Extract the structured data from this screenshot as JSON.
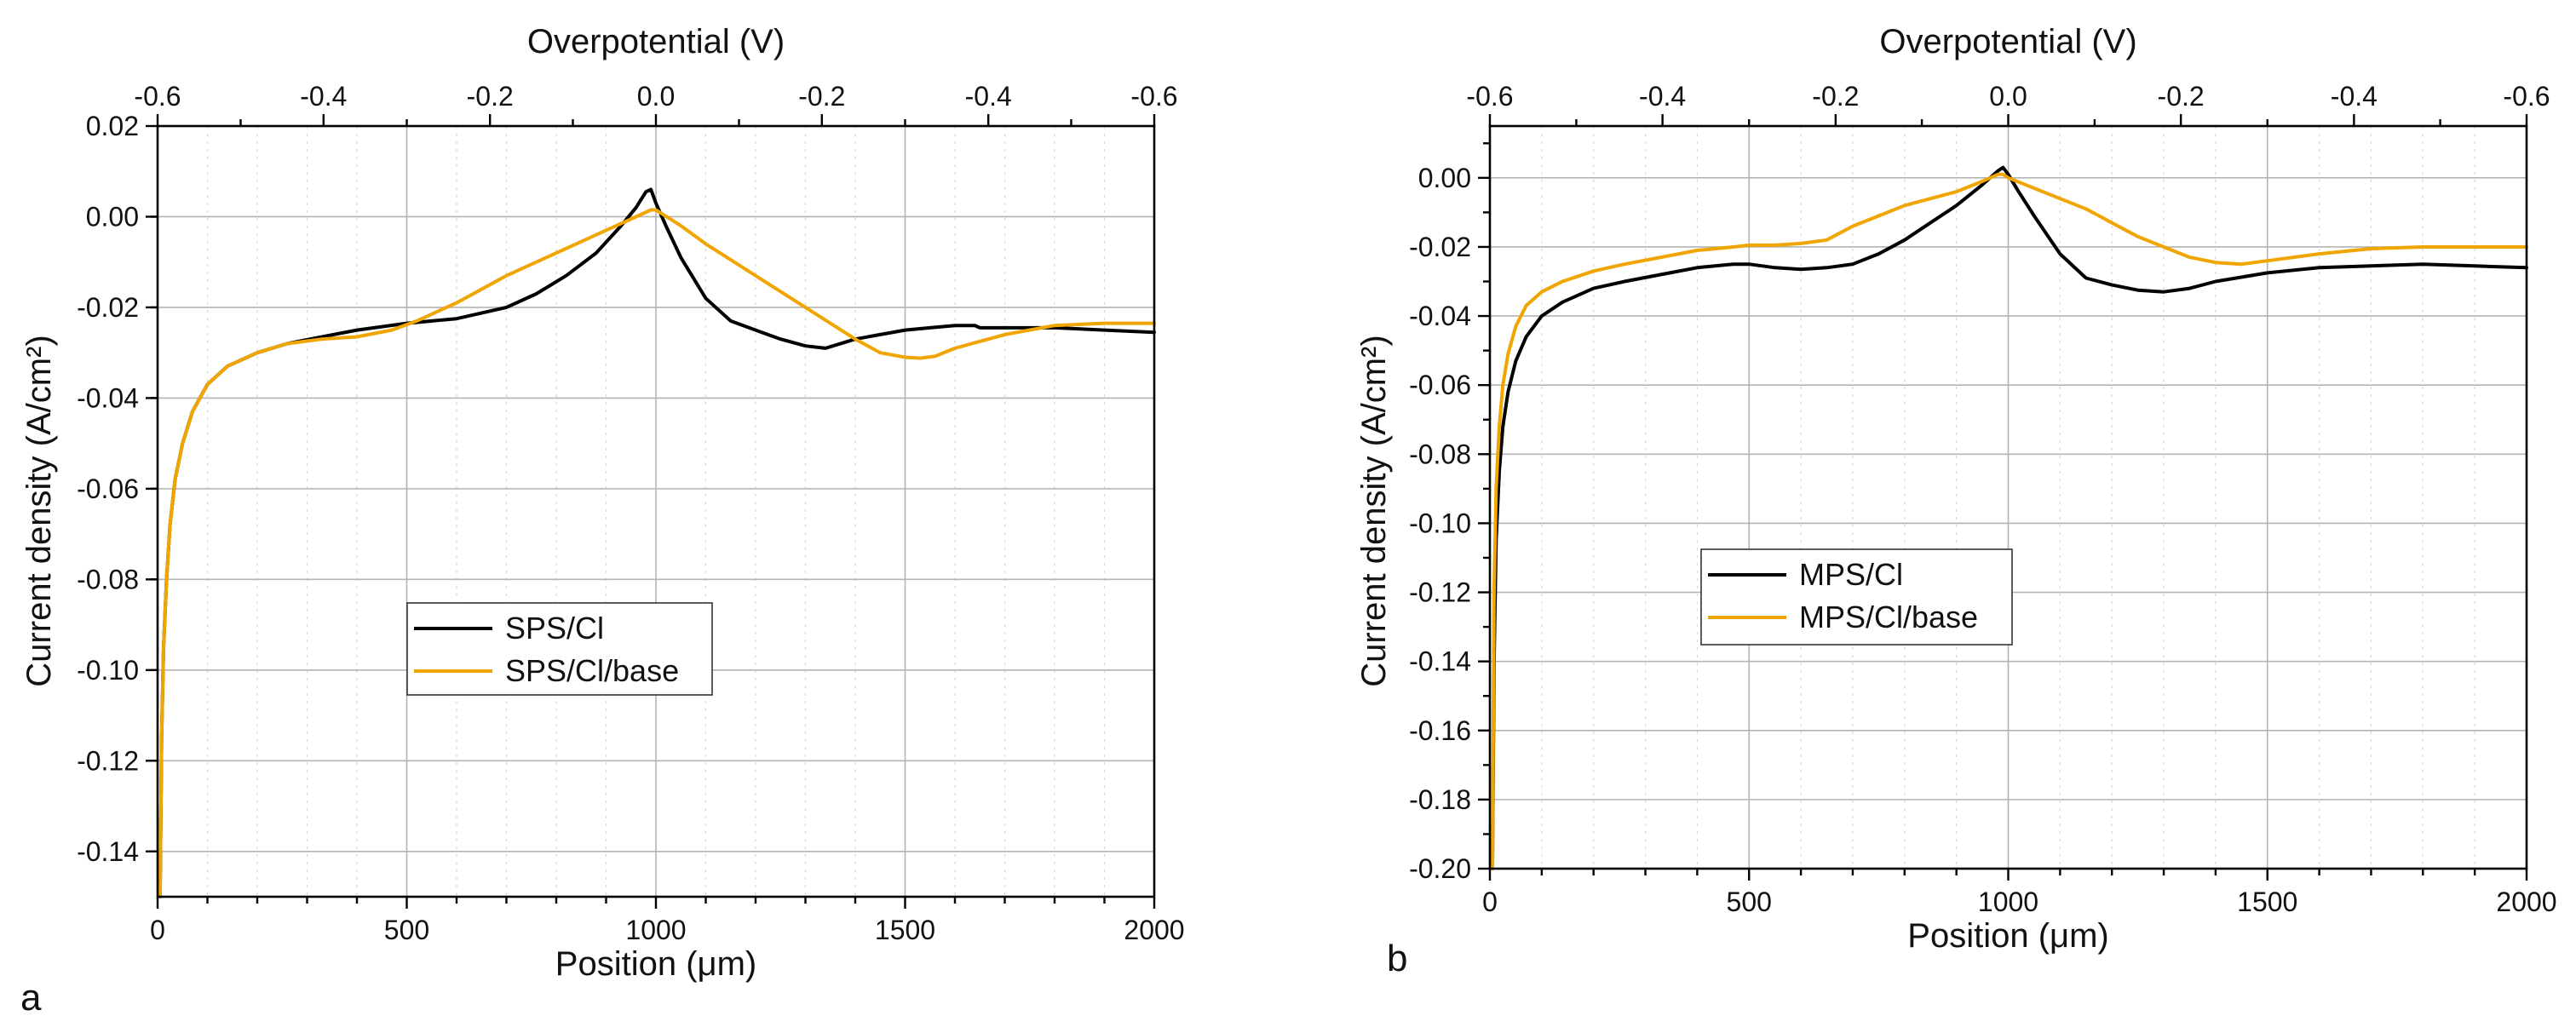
{
  "chart_data": [
    {
      "type": "line",
      "panel_label": "a",
      "xlabel": "Position (μm)",
      "ylabel": "Current density (A/cm²)",
      "top_xlabel": "Overpotential (V)",
      "xlim": [
        0,
        2000
      ],
      "ylim": [
        -0.15,
        0.02
      ],
      "x_ticks": [
        0,
        500,
        1000,
        1500,
        2000
      ],
      "x_tick_labels": [
        "0",
        "500",
        "1000",
        "1500",
        "2000"
      ],
      "y_ticks": [
        0.02,
        0.0,
        -0.02,
        -0.04,
        -0.06,
        -0.08,
        -0.1,
        -0.12,
        -0.14
      ],
      "y_tick_labels": [
        "0.02",
        "0.00",
        "-0.02",
        "-0.04",
        "-0.06",
        "-0.08",
        "-0.10",
        "-0.12",
        "-0.14"
      ],
      "top_ticks_position": [
        0,
        333,
        667,
        1000,
        1333,
        1667,
        2000
      ],
      "top_tick_labels": [
        "-0.6",
        "-0.4",
        "-0.2",
        "0.0",
        "-0.2",
        "-0.4",
        "-0.6"
      ],
      "grid": true,
      "legend_position": "center-left",
      "series": [
        {
          "name": "SPS/Cl",
          "color": "#000000",
          "x": [
            5,
            8,
            12,
            18,
            25,
            35,
            50,
            70,
            100,
            140,
            200,
            260,
            330,
            400,
            500,
            600,
            700,
            760,
            820,
            880,
            930,
            960,
            980,
            990,
            1000,
            1020,
            1050,
            1100,
            1150,
            1200,
            1250,
            1300,
            1340,
            1400,
            1450,
            1500,
            1550,
            1600,
            1640,
            1650,
            1700,
            1800,
            1900,
            2000
          ],
          "y": [
            -0.15,
            -0.115,
            -0.095,
            -0.08,
            -0.068,
            -0.058,
            -0.05,
            -0.043,
            -0.037,
            -0.033,
            -0.03,
            -0.028,
            -0.0265,
            -0.025,
            -0.0235,
            -0.0225,
            -0.02,
            -0.017,
            -0.013,
            -0.008,
            -0.002,
            0.002,
            0.0055,
            0.006,
            0.003,
            -0.002,
            -0.009,
            -0.018,
            -0.023,
            -0.025,
            -0.027,
            -0.0285,
            -0.029,
            -0.027,
            -0.026,
            -0.025,
            -0.0245,
            -0.024,
            -0.024,
            -0.0245,
            -0.0245,
            -0.0245,
            -0.025,
            -0.0255
          ]
        },
        {
          "name": "SPS/Cl/base",
          "color": "#f0a500",
          "x": [
            5,
            8,
            12,
            18,
            25,
            35,
            50,
            70,
            100,
            140,
            200,
            260,
            330,
            400,
            470,
            520,
            600,
            700,
            800,
            900,
            960,
            990,
            1000,
            1050,
            1100,
            1200,
            1300,
            1400,
            1450,
            1500,
            1530,
            1560,
            1600,
            1700,
            1800,
            1900,
            2000
          ],
          "y": [
            -0.15,
            -0.115,
            -0.095,
            -0.08,
            -0.068,
            -0.058,
            -0.05,
            -0.043,
            -0.037,
            -0.033,
            -0.03,
            -0.028,
            -0.027,
            -0.0265,
            -0.025,
            -0.023,
            -0.019,
            -0.013,
            -0.008,
            -0.003,
            0.0,
            0.0015,
            0.0015,
            -0.002,
            -0.006,
            -0.013,
            -0.02,
            -0.027,
            -0.03,
            -0.031,
            -0.0312,
            -0.0308,
            -0.029,
            -0.026,
            -0.024,
            -0.0235,
            -0.0235
          ]
        }
      ]
    },
    {
      "type": "line",
      "panel_label": "b",
      "xlabel": "Position (μm)",
      "ylabel": "Current density (A/cm²)",
      "top_xlabel": "Overpotential (V)",
      "xlim": [
        0,
        2000
      ],
      "ylim": [
        -0.2,
        0.015
      ],
      "x_ticks": [
        0,
        500,
        1000,
        1500,
        2000
      ],
      "x_tick_labels": [
        "0",
        "500",
        "1000",
        "1500",
        "2000"
      ],
      "y_ticks": [
        0.0,
        -0.02,
        -0.04,
        -0.06,
        -0.08,
        -0.1,
        -0.12,
        -0.14,
        -0.16,
        -0.18,
        -0.2
      ],
      "y_tick_labels": [
        "0.00",
        "-0.02",
        "-0.04",
        "-0.06",
        "-0.08",
        "-0.10",
        "-0.12",
        "-0.14",
        "-0.16",
        "-0.18",
        "-0.20"
      ],
      "top_ticks_position": [
        0,
        333,
        667,
        1000,
        1333,
        1667,
        2000
      ],
      "top_tick_labels": [
        "-0.6",
        "-0.4",
        "-0.2",
        "0.0",
        "-0.2",
        "-0.4",
        "-0.6"
      ],
      "grid": true,
      "legend_position": "center-left",
      "series": [
        {
          "name": "MPS/Cl",
          "color": "#000000",
          "x": [
            5,
            8,
            12,
            18,
            25,
            35,
            50,
            70,
            100,
            140,
            200,
            260,
            330,
            400,
            470,
            500,
            550,
            600,
            650,
            700,
            750,
            800,
            850,
            900,
            950,
            980,
            990,
            1000,
            1020,
            1050,
            1100,
            1150,
            1200,
            1250,
            1300,
            1350,
            1400,
            1500,
            1600,
            1700,
            1800,
            1900,
            2000
          ],
          "y": [
            -0.2,
            -0.14,
            -0.105,
            -0.085,
            -0.072,
            -0.062,
            -0.053,
            -0.046,
            -0.04,
            -0.036,
            -0.032,
            -0.03,
            -0.028,
            -0.026,
            -0.025,
            -0.025,
            -0.026,
            -0.0265,
            -0.026,
            -0.025,
            -0.022,
            -0.018,
            -0.013,
            -0.008,
            -0.002,
            0.002,
            0.003,
            0.001,
            -0.004,
            -0.011,
            -0.022,
            -0.029,
            -0.031,
            -0.0325,
            -0.033,
            -0.032,
            -0.03,
            -0.0275,
            -0.026,
            -0.0255,
            -0.025,
            -0.0255,
            -0.026
          ]
        },
        {
          "name": "MPS/Cl/base",
          "color": "#f0a500",
          "x": [
            5,
            8,
            12,
            18,
            25,
            35,
            50,
            70,
            100,
            140,
            200,
            260,
            330,
            400,
            470,
            500,
            550,
            600,
            650,
            700,
            750,
            800,
            850,
            900,
            950,
            980,
            990,
            1000,
            1050,
            1100,
            1150,
            1200,
            1250,
            1300,
            1350,
            1400,
            1450,
            1500,
            1600,
            1700,
            1800,
            1900,
            2000
          ],
          "y": [
            -0.2,
            -0.12,
            -0.09,
            -0.072,
            -0.06,
            -0.051,
            -0.043,
            -0.037,
            -0.033,
            -0.03,
            -0.027,
            -0.025,
            -0.023,
            -0.021,
            -0.02,
            -0.0195,
            -0.0195,
            -0.019,
            -0.018,
            -0.014,
            -0.011,
            -0.008,
            -0.006,
            -0.004,
            -0.001,
            0.001,
            0.001,
            0.0,
            -0.003,
            -0.006,
            -0.009,
            -0.013,
            -0.017,
            -0.02,
            -0.023,
            -0.0245,
            -0.025,
            -0.024,
            -0.022,
            -0.0205,
            -0.02,
            -0.02,
            -0.02
          ]
        }
      ]
    }
  ]
}
